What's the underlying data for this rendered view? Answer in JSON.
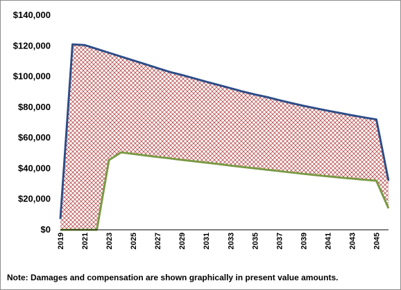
{
  "chart_data": {
    "type": "area",
    "x": [
      2019,
      2020,
      2021,
      2022,
      2023,
      2024,
      2025,
      2026,
      2027,
      2028,
      2029,
      2030,
      2031,
      2032,
      2033,
      2034,
      2035,
      2036,
      2037,
      2038,
      2039,
      2040,
      2041,
      2042,
      2043,
      2044,
      2045,
      2046
    ],
    "x_tick_labels": [
      "2019",
      "2021",
      "2023",
      "2025",
      "2027",
      "2029",
      "2031",
      "2033",
      "2035",
      "2037",
      "2039",
      "2041",
      "2043",
      "2045"
    ],
    "y_tick_labels": [
      "$0",
      "$20,000",
      "$40,000",
      "$60,000",
      "$80,000",
      "$100,000",
      "$120,000",
      "$140,000"
    ],
    "ylim": [
      0,
      140000
    ],
    "series": [
      {
        "color": "#2e4d87",
        "values": [
          7000,
          121000,
          120500,
          118000,
          115500,
          113000,
          110500,
          108000,
          105500,
          103000,
          101000,
          98800,
          96600,
          94500,
          92400,
          90200,
          88300,
          86600,
          84600,
          82700,
          80900,
          79300,
          77700,
          76200,
          74700,
          73300,
          72000,
          32000
        ]
      },
      {
        "color": "#7a9a45",
        "values": [
          0,
          0,
          0,
          0,
          45500,
          50500,
          49500,
          48500,
          47500,
          46600,
          45600,
          44700,
          43800,
          42900,
          41900,
          41000,
          40100,
          39200,
          38300,
          37400,
          36500,
          35700,
          34900,
          34100,
          33400,
          32700,
          32000,
          14000
        ]
      }
    ],
    "fill_between": {
      "pattern": "crosshatch",
      "color": "#b84a4a"
    },
    "note": "Note: Damages and compensation are shown graphically in present value amounts."
  }
}
